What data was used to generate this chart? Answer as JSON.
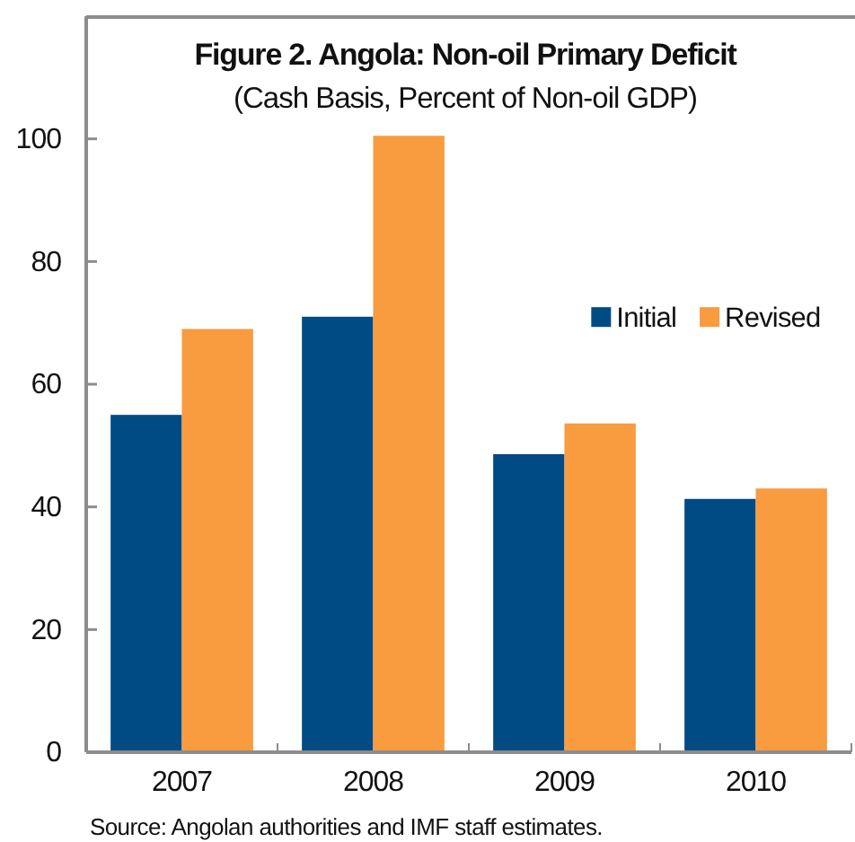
{
  "chart_data": {
    "type": "bar",
    "title": "Figure 2. Angola: Non-oil Primary Deficit",
    "subtitle": "(Cash Basis, Percent of Non-oil GDP)",
    "categories": [
      "2007",
      "2008",
      "2009",
      "2010"
    ],
    "series": [
      {
        "name": "Initial",
        "color": "#004b84",
        "values": [
          55,
          71,
          48.6,
          41.3
        ]
      },
      {
        "name": "Revised",
        "color": "#f99b3f",
        "values": [
          69,
          100.5,
          53.6,
          43
        ]
      }
    ],
    "ylim": [
      0,
      120
    ],
    "yticks": [
      0,
      20,
      40,
      60,
      80,
      100
    ],
    "legend": "right",
    "annotations": [
      "Source: Angolan authorities and IMF staff estimates."
    ]
  }
}
